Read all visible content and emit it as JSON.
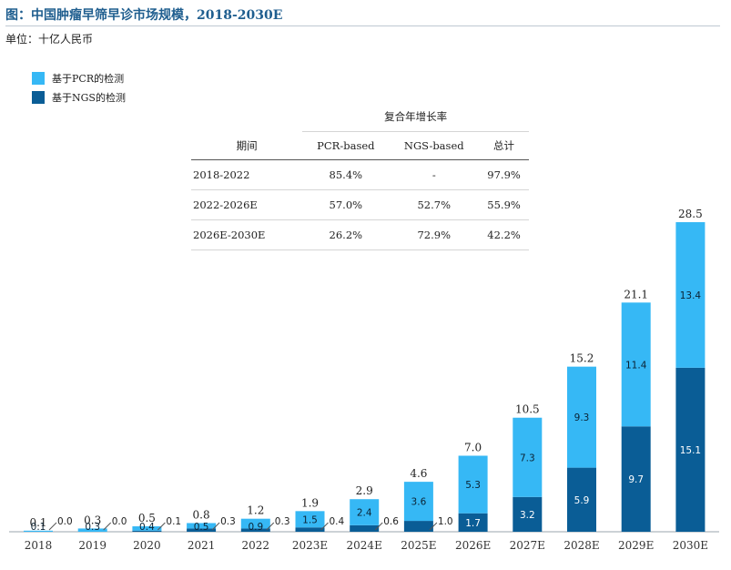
{
  "title": "图：中国肿瘤早筛早诊市场规模，2018-2030E",
  "unit_label": "单位：十亿人民币",
  "colors": {
    "pcr": "#36b8f5",
    "ngs": "#0a5d96",
    "title": "#1f5e8f"
  },
  "legend": [
    {
      "label": "基于PCR的检测",
      "color": "#36b8f5"
    },
    {
      "label": "基于NGS的检测",
      "color": "#0a5d96"
    }
  ],
  "cagr_table": {
    "group_header": "复合年增长率",
    "period_header": "期间",
    "columns": [
      "PCR-based",
      "NGS-based",
      "总计"
    ],
    "rows": [
      {
        "period": "2018-2022",
        "values": [
          "85.4%",
          "-",
          "97.9%"
        ]
      },
      {
        "period": "2022-2026E",
        "values": [
          "57.0%",
          "52.7%",
          "55.9%"
        ]
      },
      {
        "period": "2026E-2030E",
        "values": [
          "26.2%",
          "72.9%",
          "42.2%"
        ]
      }
    ]
  },
  "chart_data": {
    "type": "bar",
    "stacked": true,
    "categories": [
      "2018",
      "2019",
      "2020",
      "2021",
      "2022",
      "2023E",
      "2024E",
      "2025E",
      "2026E",
      "2027E",
      "2028E",
      "2029E",
      "2030E"
    ],
    "series": [
      {
        "name": "基于NGS的检测",
        "values": [
          0.0,
          0.0,
          0.1,
          0.3,
          0.3,
          0.4,
          0.6,
          1.0,
          1.7,
          3.2,
          5.9,
          9.7,
          15.1
        ]
      },
      {
        "name": "基于PCR的检测",
        "values": [
          0.1,
          0.3,
          0.4,
          0.5,
          0.9,
          1.5,
          2.4,
          3.6,
          5.3,
          7.3,
          9.3,
          11.4,
          13.4
        ]
      }
    ],
    "totals": [
      0.1,
      0.3,
      0.5,
      0.8,
      1.2,
      1.9,
      2.9,
      4.6,
      7.0,
      10.5,
      15.2,
      21.1,
      28.5
    ],
    "ngs_labels": [
      "0.0",
      "0.0",
      "0.1",
      "0.3",
      "0.3",
      "0.4",
      "0.6",
      "1.0",
      "1.7",
      "3.2",
      "5.9",
      "9.7",
      "15.1"
    ],
    "pcr_labels": [
      "0.1",
      "0.3",
      "0.4",
      "0.5",
      "0.9",
      "1.5",
      "2.4",
      "3.6",
      "5.3",
      "7.3",
      "9.3",
      "11.4",
      "13.4"
    ],
    "total_labels": [
      "0.1",
      "0.3",
      "0.5",
      "0.8",
      "1.2",
      "1.9",
      "2.9",
      "4.6",
      "7.0",
      "10.5",
      "15.2",
      "21.1",
      "28.5"
    ],
    "ylim": [
      0,
      28.5
    ],
    "grid": false
  }
}
